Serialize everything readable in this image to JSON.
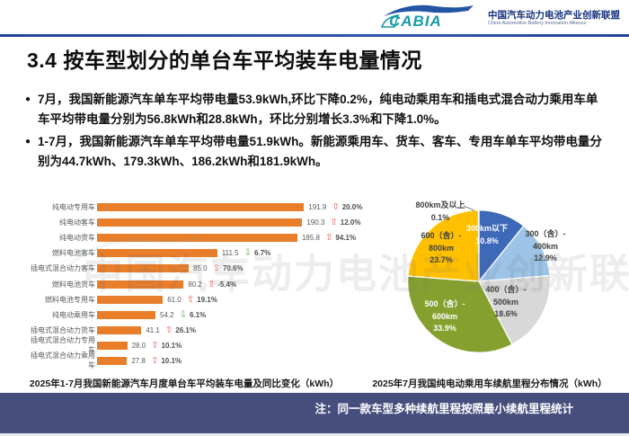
{
  "header": {
    "logo_text": "CABIA",
    "org_cn": "中国汽车动力电池产业创新联盟",
    "org_en": "China Automotive Battery Innovation Alliance"
  },
  "title": "3.4 按车型划分的单台车平均装车电量情况",
  "bullets": [
    "7月，我国新能源汽车单车平均带电量53.9kWh,环比下降0.2%，纯电动乘用车和插电式混合动力乘用车单车平均带电量分别为56.8kWh和28.8kWh，环比分别增长3.3%和下降1.0%。",
    "1-7月，我国新能源汽车单车平均带电量51.9kWh。新能源乘用车、货车、客车、专用车单车平均带电量分别为44.7kWh、179.3kWh、186.2kWh和181.9kWh。"
  ],
  "watermark": "中国汽车动力电池产业创新联盟",
  "chart_data": [
    {
      "type": "bar",
      "orientation": "horizontal",
      "title": "2025年1-7月我国新能源汽车月度单台车平均装车电量及同比变化（kWh）",
      "categories": [
        "纯电动专用车",
        "纯电动客车",
        "纯电动货车",
        "燃料电池客车",
        "插电式混合动力客车",
        "燃料电池货车",
        "燃料电池专用车",
        "纯电动乘用车",
        "插电式混合动力货车",
        "插电式混合动力专用车",
        "插电式混合动力乘用车"
      ],
      "values": [
        191.9,
        190.3,
        185.8,
        111.5,
        85.0,
        80.2,
        61.0,
        54.2,
        41.1,
        28.0,
        27.8
      ],
      "yoy_change": [
        "20.0%",
        "12.0%",
        "94.1%",
        "6.7%",
        "70.6%",
        "-5.4%",
        "19.1%",
        "6.1%",
        "26.1%",
        "10.1%",
        "10.1%"
      ],
      "yoy_direction": [
        "up",
        "up",
        "up",
        "down",
        "up",
        "up",
        "up",
        "down",
        "up",
        "up",
        "up"
      ],
      "bar_color": "#e87d2a",
      "xlim": [
        0,
        200
      ],
      "grid": false
    },
    {
      "type": "pie",
      "title": "2025年7月我国纯电动乘用车续航里程分布情况（kWh）",
      "slices": [
        {
          "label": "300km以下",
          "value": 10.8,
          "color": "#3e68b8",
          "lines": [
            "300km以下",
            "10.8%"
          ]
        },
        {
          "label": "300（含）-400km",
          "value": 12.9,
          "color": "#9dc3e6",
          "lines": [
            "300（含）-",
            "400km",
            "12.9%"
          ]
        },
        {
          "label": "400（含）-500km",
          "value": 18.6,
          "color": "#d8d8d8",
          "lines": [
            "400（含）-",
            "500km",
            "18.6%"
          ]
        },
        {
          "label": "500（含）-600km",
          "value": 33.9,
          "color": "#85a02f",
          "lines": [
            "500（含）-",
            "600km",
            "33.9%"
          ]
        },
        {
          "label": "600（含）-800km",
          "value": 23.7,
          "color": "#ffc000",
          "lines": [
            "600（含）-",
            "800km",
            "23.7%"
          ]
        },
        {
          "label": "800km及以上",
          "value": 0.1,
          "color": "#2e75b6",
          "lines": [
            "800km及以上",
            "0.1%"
          ]
        }
      ],
      "legend_position": "labels-on-slices"
    }
  ],
  "footer": {
    "note": "注：同一款车型多种续航里程按照最小续航里程统计"
  },
  "colors": {
    "header_line": "#24429a",
    "footer_bg": "#464e7d",
    "bar": "#e87d2a",
    "arrow_up": "#e8564d",
    "arrow_down": "#6fae4b"
  }
}
